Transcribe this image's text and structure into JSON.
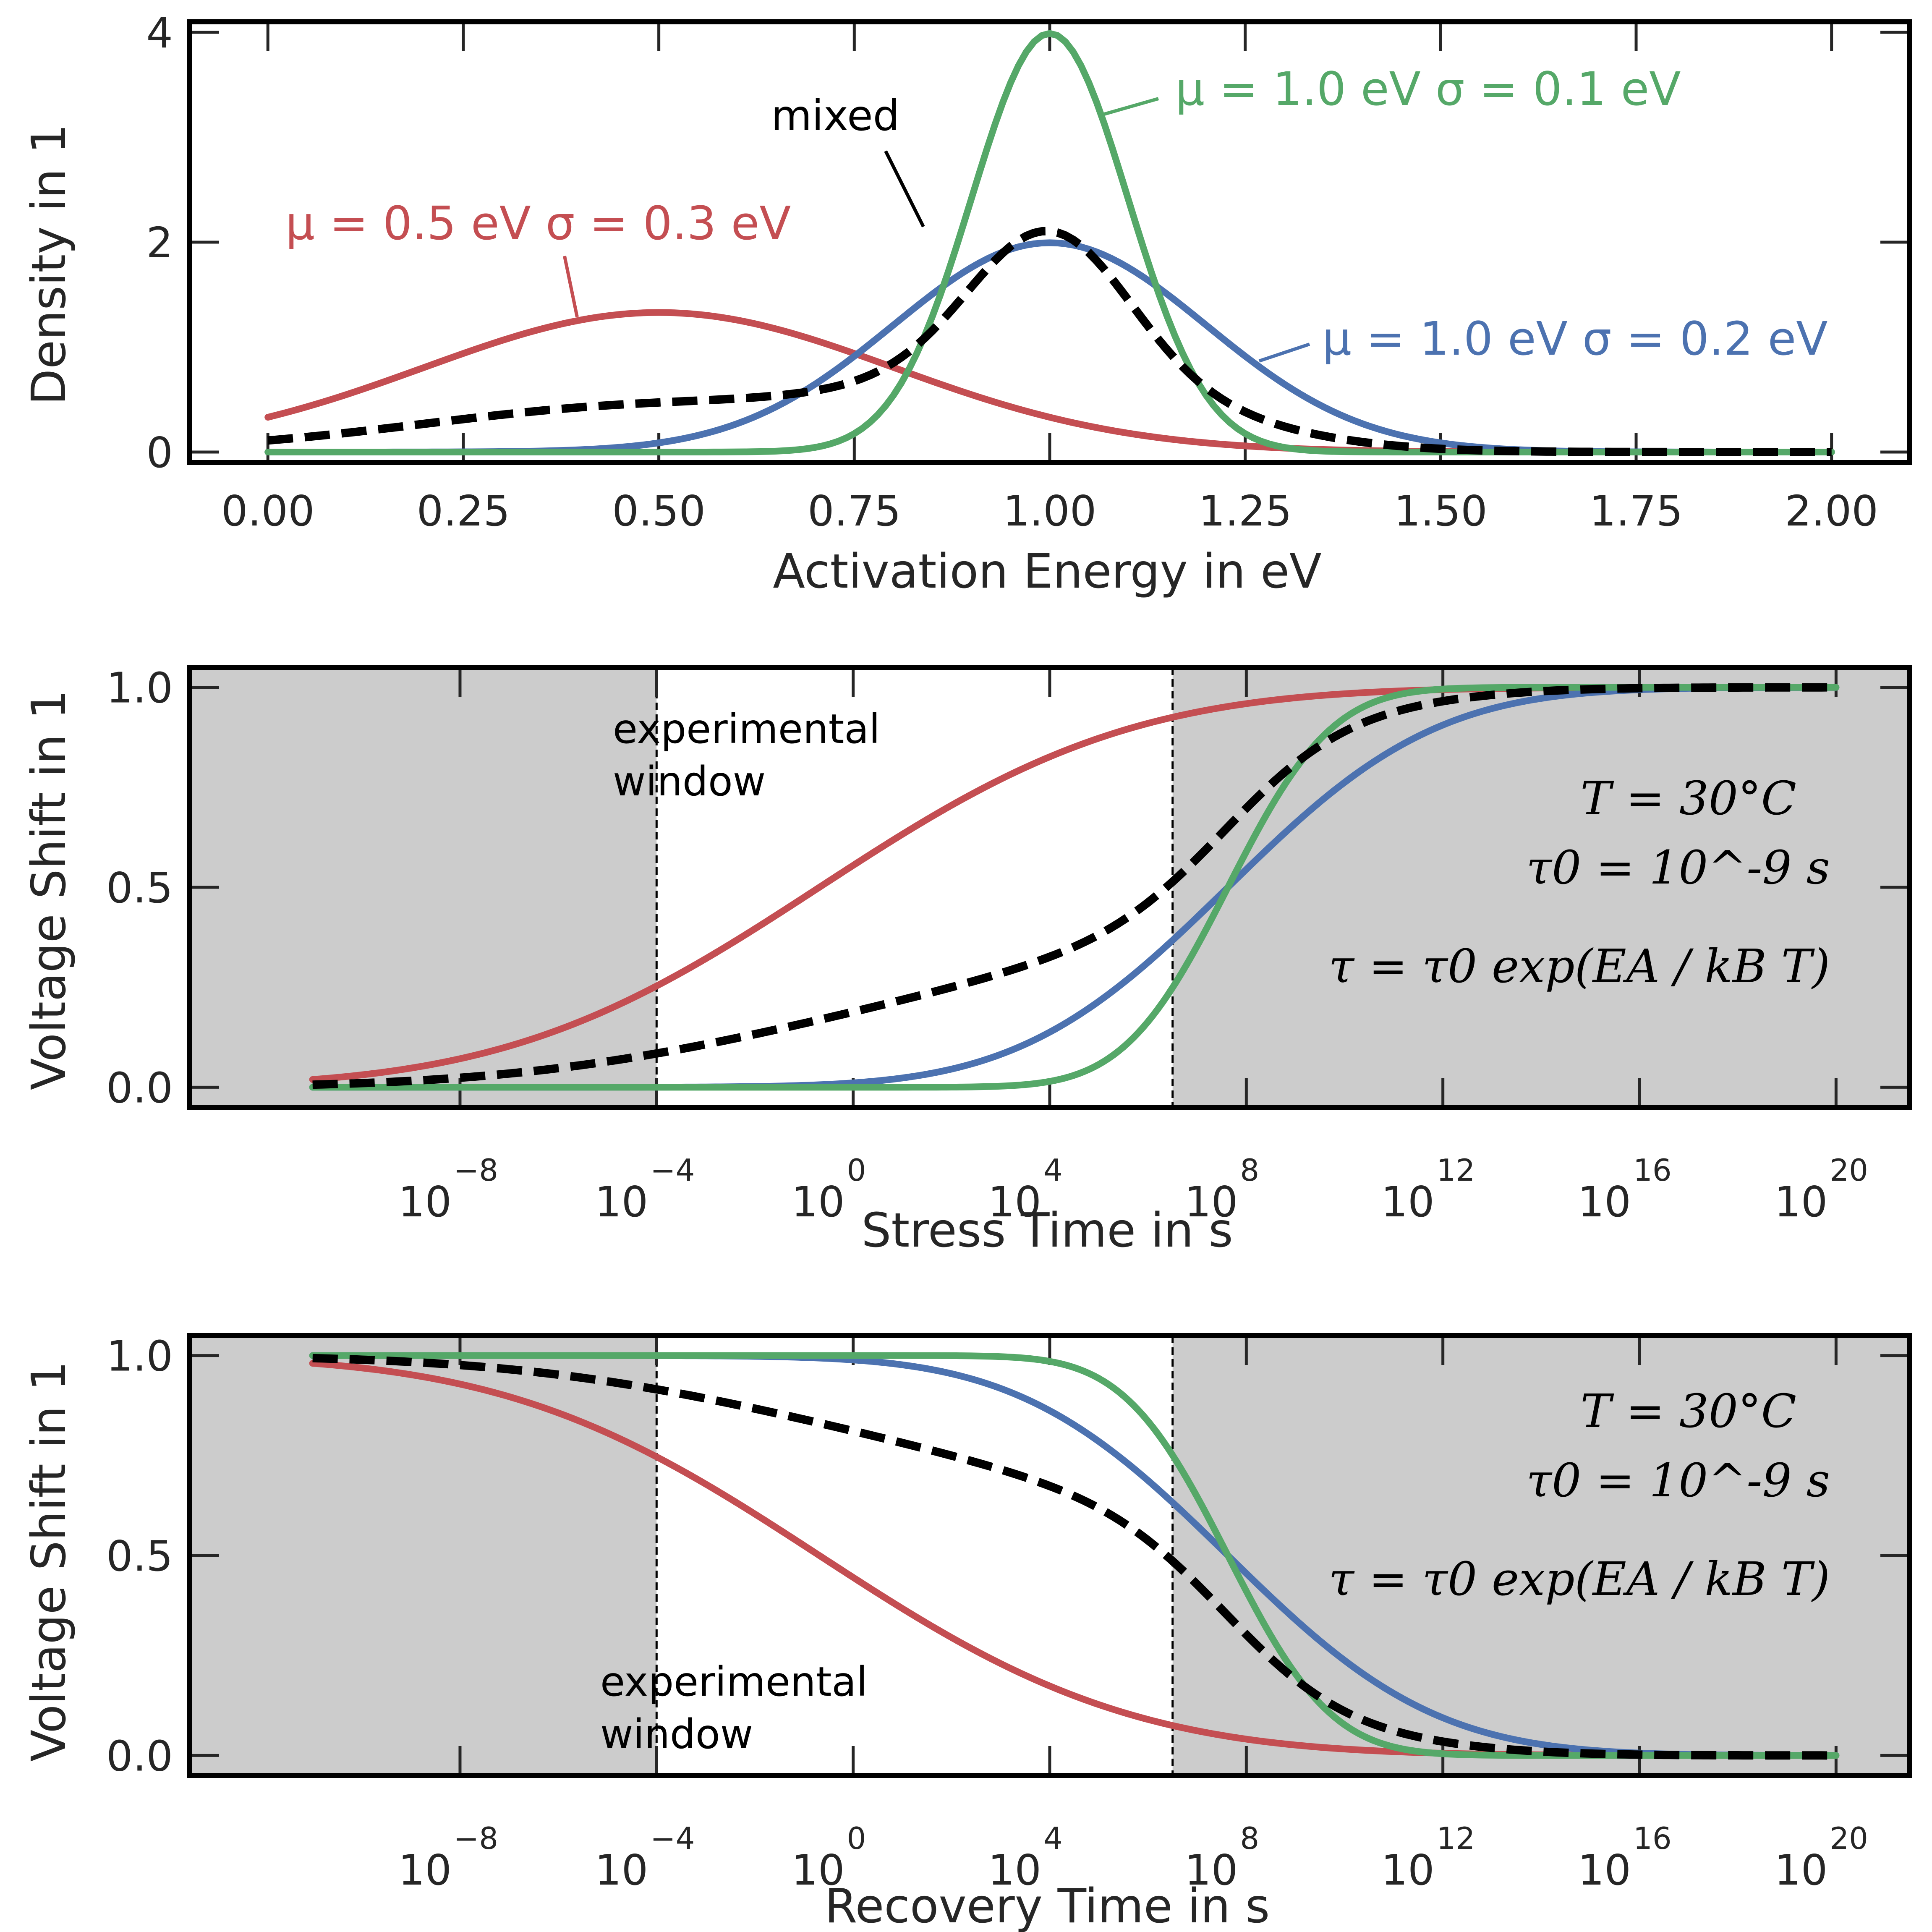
{
  "chart_data": [
    {
      "type": "line",
      "title": "",
      "xlabel": "Activation Energy in eV",
      "ylabel": "Density in 1",
      "xlim": [
        -0.1,
        2.1
      ],
      "ylim": [
        -0.1,
        4.1
      ],
      "xticks": [
        "0.00",
        "0.25",
        "0.50",
        "0.75",
        "1.00",
        "1.25",
        "1.50",
        "1.75",
        "2.00"
      ],
      "xtick_values": [
        0,
        0.25,
        0.5,
        0.75,
        1.0,
        1.25,
        1.5,
        1.75,
        2.0
      ],
      "yticks": [
        "0",
        "2",
        "4"
      ],
      "ytick_values": [
        0,
        2,
        4
      ],
      "grid": false,
      "x": [
        0.0,
        0.1,
        0.2,
        0.3,
        0.4,
        0.5,
        0.6,
        0.7,
        0.8,
        0.9,
        1.0,
        1.1,
        1.2,
        1.3,
        1.4,
        1.5,
        1.6,
        1.7,
        1.8,
        1.9,
        2.0
      ],
      "series": [
        {
          "name": "μ = 0.5 eV σ = 0.3 eV",
          "color": "#c44e52",
          "style": "solid",
          "values": [
            0.33,
            0.54,
            0.8,
            1.06,
            1.26,
            1.33,
            1.26,
            1.06,
            0.8,
            0.54,
            0.33,
            0.18,
            0.09,
            0.04,
            0.01,
            0.01,
            0.0,
            0.0,
            0.0,
            0.0,
            0.0
          ]
        },
        {
          "name": "μ = 1.0 eV σ = 0.2 eV",
          "color": "#4c72b0",
          "style": "solid",
          "values": [
            0.0,
            0.0,
            0.0,
            0.0,
            0.02,
            0.09,
            0.27,
            0.65,
            1.21,
            1.76,
            1.99,
            1.76,
            1.21,
            0.65,
            0.27,
            0.09,
            0.02,
            0.0,
            0.0,
            0.0,
            0.0
          ]
        },
        {
          "name": "μ = 1.0 eV σ = 0.1 eV",
          "color": "#55a868",
          "style": "solid",
          "values": [
            0.0,
            0.0,
            0.0,
            0.0,
            0.0,
            0.0,
            0.0,
            0.04,
            0.54,
            2.42,
            3.99,
            2.42,
            0.54,
            0.04,
            0.0,
            0.0,
            0.0,
            0.0,
            0.0,
            0.0,
            0.0
          ]
        },
        {
          "name": "mixed",
          "color": "#000000",
          "style": "dashed",
          "values": [
            0.11,
            0.18,
            0.27,
            0.35,
            0.43,
            0.47,
            0.51,
            0.58,
            0.85,
            1.57,
            2.1,
            1.45,
            0.61,
            0.24,
            0.09,
            0.03,
            0.01,
            0.0,
            0.0,
            0.0,
            0.0
          ]
        }
      ],
      "annotations": [
        {
          "text": "mixed",
          "color": "#000000"
        },
        {
          "text": "μ = 1.0 eV  σ = 0.1 eV",
          "color": "#55a868"
        },
        {
          "text": "μ = 0.5 eV  σ = 0.3 eV",
          "color": "#c44e52"
        },
        {
          "text": "μ = 1.0 eV  σ = 0.2 eV",
          "color": "#4c72b0"
        }
      ]
    },
    {
      "type": "line",
      "xscale": "log",
      "xlabel": "Stress Time in s",
      "ylabel": "Voltage Shift in 1",
      "xlim_log10": [
        -13.5,
        21.5
      ],
      "ylim": [
        -0.05,
        1.05
      ],
      "xticks": [
        "10^-8",
        "10^-4",
        "10^0",
        "10^4",
        "10^8",
        "10^12",
        "10^16",
        "10^20"
      ],
      "xtick_log10": [
        -8,
        -4,
        0,
        4,
        8,
        12,
        16,
        20
      ],
      "yticks": [
        "0.0",
        "0.5",
        "1.0"
      ],
      "ytick_values": [
        0,
        0.5,
        1.0
      ],
      "experimental_window_log10": [
        -4,
        6.5
      ],
      "shaded_color": "#cccccc",
      "window_label": "experimental\nwindow",
      "annotation_lines": [
        "T = 30°C",
        "τ0 = 10^-9 s",
        "τ = τ0 exp(EA / kB T)"
      ],
      "x_log10": [
        -11,
        -8,
        -6,
        -4,
        -2,
        0,
        2,
        4,
        6,
        8,
        10,
        12,
        14,
        16,
        18,
        20
      ],
      "series": [
        {
          "name": "μ = 0.5 eV σ = 0.3 eV",
          "color": "#c44e52",
          "style": "solid",
          "values": [
            0.03,
            0.09,
            0.16,
            0.25,
            0.38,
            0.55,
            0.72,
            0.86,
            0.94,
            0.98,
            0.99,
            1.0,
            1.0,
            1.0,
            1.0,
            1.0
          ]
        },
        {
          "name": "μ = 1.0 eV σ = 0.2 eV",
          "color": "#4c72b0",
          "style": "solid",
          "values": [
            0.0,
            0.0,
            0.0,
            0.0,
            0.0,
            0.01,
            0.06,
            0.18,
            0.39,
            0.62,
            0.81,
            0.93,
            0.98,
            0.99,
            1.0,
            1.0
          ]
        },
        {
          "name": "μ = 1.0 eV σ = 0.1 eV",
          "color": "#55a868",
          "style": "solid",
          "values": [
            0.0,
            0.0,
            0.0,
            0.0,
            0.0,
            0.0,
            0.0,
            0.04,
            0.23,
            0.64,
            0.93,
            1.0,
            1.0,
            1.0,
            1.0,
            1.0
          ]
        },
        {
          "name": "mixed",
          "color": "#000000",
          "style": "dashed",
          "values": [
            0.01,
            0.03,
            0.05,
            0.08,
            0.13,
            0.19,
            0.26,
            0.36,
            0.52,
            0.75,
            0.91,
            0.98,
            0.99,
            1.0,
            1.0,
            1.0
          ]
        }
      ]
    },
    {
      "type": "line",
      "xscale": "log",
      "xlabel": "Recovery Time in s",
      "ylabel": "Voltage Shift in 1",
      "xlim_log10": [
        -13.5,
        21.5
      ],
      "ylim": [
        -0.05,
        1.05
      ],
      "xticks": [
        "10^-8",
        "10^-4",
        "10^0",
        "10^4",
        "10^8",
        "10^12",
        "10^16",
        "10^20"
      ],
      "xtick_log10": [
        -8,
        -4,
        0,
        4,
        8,
        12,
        16,
        20
      ],
      "yticks": [
        "0.0",
        "0.5",
        "1.0"
      ],
      "ytick_values": [
        0,
        0.5,
        1.0
      ],
      "experimental_window_log10": [
        -4,
        6.5
      ],
      "shaded_color": "#cccccc",
      "window_label": "experimental\nwindow",
      "annotation_lines": [
        "T = 30°C",
        "τ0 = 10^-9 s",
        "τ = τ0 exp(EA / kB T)"
      ],
      "x_log10": [
        -11,
        -8,
        -6,
        -4,
        -2,
        0,
        2,
        4,
        6,
        8,
        10,
        12,
        14,
        16,
        18,
        20
      ],
      "series": [
        {
          "name": "μ = 0.5 eV σ = 0.3 eV",
          "color": "#c44e52",
          "style": "solid",
          "values": [
            0.97,
            0.91,
            0.84,
            0.75,
            0.62,
            0.45,
            0.28,
            0.14,
            0.06,
            0.02,
            0.01,
            0.0,
            0.0,
            0.0,
            0.0,
            0.0
          ]
        },
        {
          "name": "μ = 1.0 eV σ = 0.2 eV",
          "color": "#4c72b0",
          "style": "solid",
          "values": [
            1.0,
            1.0,
            1.0,
            1.0,
            1.0,
            0.99,
            0.94,
            0.82,
            0.61,
            0.38,
            0.19,
            0.07,
            0.02,
            0.01,
            0.0,
            0.0
          ]
        },
        {
          "name": "μ = 1.0 eV σ = 0.1 eV",
          "color": "#55a868",
          "style": "solid",
          "values": [
            1.0,
            1.0,
            1.0,
            1.0,
            1.0,
            1.0,
            1.0,
            0.96,
            0.77,
            0.36,
            0.07,
            0.0,
            0.0,
            0.0,
            0.0,
            0.0
          ]
        },
        {
          "name": "mixed",
          "color": "#000000",
          "style": "dashed",
          "values": [
            0.99,
            0.97,
            0.95,
            0.92,
            0.87,
            0.81,
            0.74,
            0.64,
            0.48,
            0.25,
            0.09,
            0.02,
            0.01,
            0.0,
            0.0,
            0.0
          ]
        }
      ]
    }
  ]
}
